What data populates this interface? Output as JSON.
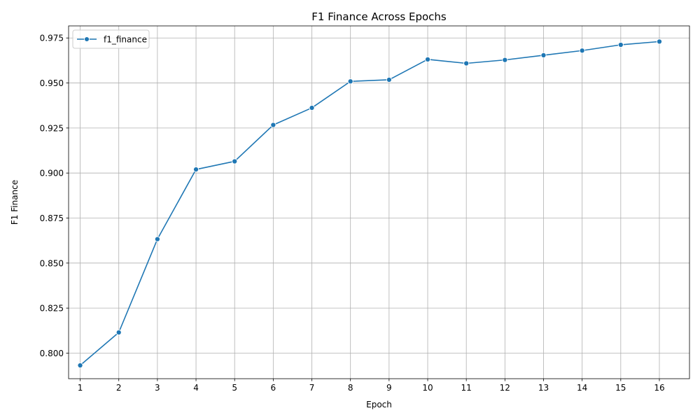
{
  "chart_data": {
    "type": "line",
    "title": "F1 Finance Across Epochs",
    "xlabel": "Epoch",
    "ylabel": "F1 Finance",
    "x": [
      1,
      2,
      3,
      4,
      5,
      6,
      7,
      8,
      9,
      10,
      11,
      12,
      13,
      14,
      15,
      16
    ],
    "series": [
      {
        "name": "f1_finance",
        "color": "#1f77b4",
        "marker": "circle",
        "values": [
          0.7932,
          0.8115,
          0.8633,
          0.902,
          0.9065,
          0.9267,
          0.9362,
          0.9509,
          0.9518,
          0.9631,
          0.9609,
          0.9628,
          0.9654,
          0.968,
          0.9712,
          0.973
        ]
      }
    ],
    "xticks": [
      "1",
      "2",
      "3",
      "4",
      "5",
      "6",
      "7",
      "8",
      "9",
      "10",
      "11",
      "12",
      "13",
      "14",
      "15",
      "16"
    ],
    "yticks": [
      "0.800",
      "0.825",
      "0.850",
      "0.875",
      "0.900",
      "0.925",
      "0.950",
      "0.975"
    ],
    "xlim": [
      0.7,
      16.78
    ],
    "ylim": [
      0.7858,
      0.9817
    ],
    "grid": true,
    "legend_position": "upper-left"
  }
}
